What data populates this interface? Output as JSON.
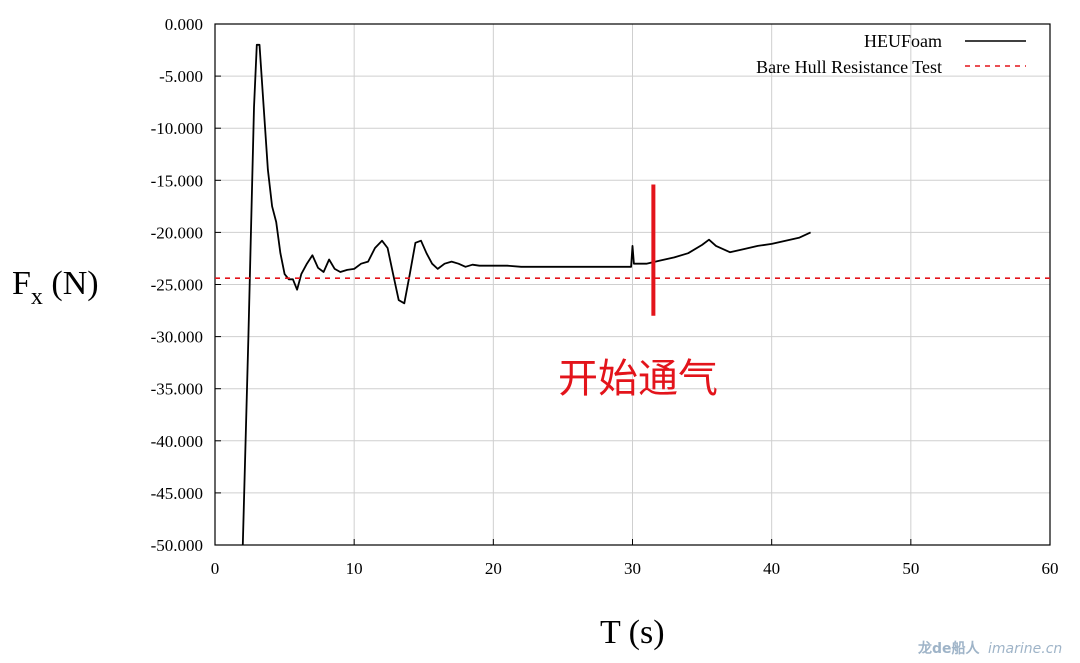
{
  "chart_data": {
    "type": "line",
    "title": "",
    "xlabel": "T (s)",
    "ylabel_main": "F",
    "ylabel_sub": "x",
    "ylabel_rest": " (N)",
    "xlim": [
      0,
      60
    ],
    "ylim": [
      -50,
      0
    ],
    "xticks": [
      "0",
      "10",
      "20",
      "30",
      "40",
      "50",
      "60"
    ],
    "yticks": [
      "0.000",
      "-5.000",
      "-10.000",
      "-15.000",
      "-20.000",
      "-25.000",
      "-30.000",
      "-35.000",
      "-40.000",
      "-45.000",
      "-50.000"
    ],
    "grid": true,
    "legend_position": "top-right",
    "series": [
      {
        "name": "HEUFoam",
        "color": "#000000",
        "style": "solid",
        "x": [
          2.0,
          2.4,
          2.8,
          3.0,
          3.2,
          3.5,
          3.8,
          4.1,
          4.4,
          4.7,
          5.0,
          5.3,
          5.6,
          5.9,
          6.2,
          6.6,
          7.0,
          7.4,
          7.8,
          8.2,
          8.6,
          9.0,
          9.5,
          10.0,
          10.5,
          11.0,
          11.5,
          12.0,
          12.4,
          12.8,
          13.2,
          13.6,
          14.0,
          14.4,
          14.8,
          15.2,
          15.6,
          16.0,
          16.5,
          17.0,
          17.5,
          18.0,
          18.5,
          19.0,
          20.0,
          21.0,
          22.0,
          24.0,
          26.0,
          28.0,
          29.9,
          30.0,
          30.1,
          31.0,
          32.0,
          33.0,
          34.0,
          35.0,
          35.5,
          36.0,
          37.0,
          38.0,
          39.0,
          40.0,
          41.0,
          42.0,
          42.8
        ],
        "y": [
          -50.0,
          -30.0,
          -8.0,
          -2.0,
          -2.0,
          -8.0,
          -14.0,
          -17.5,
          -19.0,
          -22.0,
          -24.0,
          -24.5,
          -24.5,
          -25.5,
          -24.0,
          -23.0,
          -22.2,
          -23.4,
          -23.8,
          -22.6,
          -23.5,
          -23.8,
          -23.6,
          -23.5,
          -23.0,
          -22.8,
          -21.5,
          -20.8,
          -21.5,
          -24.0,
          -26.5,
          -26.8,
          -24.0,
          -21.0,
          -20.8,
          -22.0,
          -23.0,
          -23.5,
          -23.0,
          -22.8,
          -23.0,
          -23.3,
          -23.1,
          -23.2,
          -23.2,
          -23.2,
          -23.3,
          -23.3,
          -23.3,
          -23.3,
          -23.3,
          -21.3,
          -23.0,
          -23.0,
          -22.7,
          -22.4,
          -22.0,
          -21.2,
          -20.7,
          -21.3,
          -21.9,
          -21.6,
          -21.3,
          -21.1,
          -20.8,
          -20.5,
          -20.0
        ]
      },
      {
        "name": "Bare Hull Resistance Test",
        "color": "#e3141b",
        "style": "dashed",
        "x": [
          0,
          60
        ],
        "y": [
          -24.4,
          -24.4
        ]
      }
    ],
    "annotations": [
      {
        "text": "开始通气",
        "color": "#e3141b",
        "x": 31.5,
        "y_top": -15.4,
        "y_bottom": -28.0
      }
    ]
  },
  "watermark": {
    "brand": "龙de船人",
    "site": "imarine.cn"
  }
}
